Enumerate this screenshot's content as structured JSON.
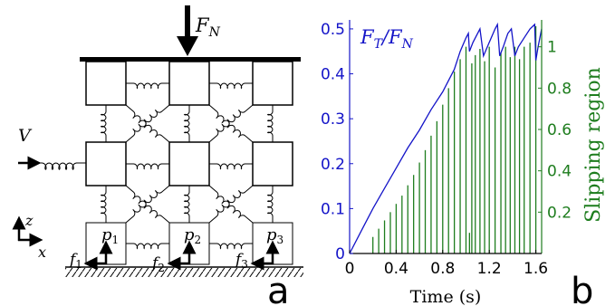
{
  "diagram": {
    "force_label_main": "F",
    "force_label_sub": "N",
    "velocity_label": "V",
    "axis_z_label": "z",
    "axis_x_label": "x",
    "pads": [
      {
        "p_label": "p",
        "p_sub": "1",
        "f_label": "f",
        "f_sub": "1"
      },
      {
        "p_label": "p",
        "p_sub": "2",
        "f_label": "f",
        "f_sub": "2"
      },
      {
        "p_label": "p",
        "p_sub": "3",
        "f_label": "f",
        "f_sub": "3"
      }
    ],
    "panel_letter": "a"
  },
  "chart_data": {
    "type": "line",
    "panel_letter": "b",
    "title_left_main": "F",
    "title_left_sub1": "T",
    "title_left_slash": "/F",
    "title_left_sub2": "N",
    "xlabel": "Time (s)",
    "ylabel_right": "Slipping region",
    "xlim": [
      0,
      1.65
    ],
    "ylim_left": [
      0,
      0.52
    ],
    "ylim_right": [
      0,
      1.13
    ],
    "x_ticks": [
      "0",
      "0.4",
      "0.8",
      "1.2",
      "1.6"
    ],
    "x_tick_values": [
      0,
      0.4,
      0.8,
      1.2,
      1.6
    ],
    "y_left_ticks": [
      "0",
      "0.1",
      "0.2",
      "0.3",
      "0.4",
      "0.5"
    ],
    "y_left_tick_values": [
      0,
      0.1,
      0.2,
      0.3,
      0.4,
      0.5
    ],
    "y_right_ticks": [
      "0.2",
      "0.4",
      "0.6",
      "0.8",
      "1"
    ],
    "y_right_tick_values": [
      0.2,
      0.4,
      0.6,
      0.8,
      1.0
    ],
    "colors": {
      "left": "#1414c8",
      "right": "#1e7d1e"
    },
    "series": [
      {
        "axis": "left",
        "x": [
          0,
          0.1,
          0.2,
          0.3,
          0.4,
          0.5,
          0.6,
          0.7,
          0.8,
          0.9,
          0.95,
          1.0,
          1.02,
          1.03,
          1.06,
          1.1,
          1.12,
          1.15,
          1.2,
          1.25,
          1.27,
          1.29,
          1.32,
          1.36,
          1.39,
          1.42,
          1.45,
          1.5,
          1.55,
          1.59,
          1.6,
          1.62,
          1.65
        ],
        "y": [
          0,
          0.05,
          0.1,
          0.145,
          0.19,
          0.235,
          0.275,
          0.32,
          0.36,
          0.41,
          0.45,
          0.48,
          0.49,
          0.45,
          0.47,
          0.49,
          0.5,
          0.44,
          0.47,
          0.5,
          0.51,
          0.44,
          0.46,
          0.49,
          0.5,
          0.44,
          0.46,
          0.48,
          0.5,
          0.51,
          0.43,
          0.46,
          0.5
        ]
      },
      {
        "axis": "right",
        "type": "impulse",
        "x": [
          0.2,
          0.25,
          0.3,
          0.35,
          0.4,
          0.45,
          0.5,
          0.55,
          0.6,
          0.65,
          0.7,
          0.75,
          0.8,
          0.85,
          0.9,
          0.95,
          1.0,
          1.03,
          1.05,
          1.08,
          1.12,
          1.16,
          1.2,
          1.25,
          1.3,
          1.34,
          1.38,
          1.42,
          1.46,
          1.5,
          1.55,
          1.6
        ],
        "y": [
          0.08,
          0.12,
          0.16,
          0.2,
          0.24,
          0.28,
          0.33,
          0.38,
          0.44,
          0.5,
          0.57,
          0.64,
          0.72,
          0.8,
          0.88,
          0.94,
          1.0,
          0.1,
          0.92,
          0.96,
          0.99,
          0.93,
          1.0,
          0.9,
          0.97,
          1.0,
          0.95,
          1.0,
          0.94,
          1.0,
          1.02,
          1.1
        ]
      }
    ]
  }
}
